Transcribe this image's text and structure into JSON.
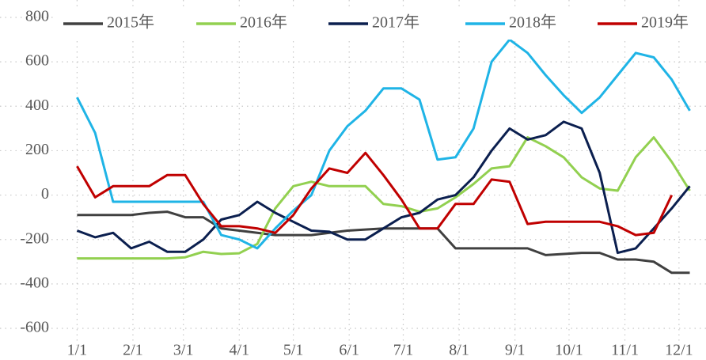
{
  "chart_data": {
    "type": "line",
    "x": [
      0,
      10,
      20,
      30,
      40,
      50,
      60,
      70,
      80,
      90,
      100,
      110,
      120,
      130,
      140,
      150,
      160,
      170,
      180,
      190,
      200,
      210,
      220,
      230,
      240,
      250,
      260,
      270,
      280,
      290,
      300,
      310,
      320,
      330,
      340
    ],
    "xlim": [
      -5,
      349
    ],
    "xticks": [
      {
        "value": 0,
        "label": "1/1"
      },
      {
        "value": 31,
        "label": "2/1"
      },
      {
        "value": 59,
        "label": "3/1"
      },
      {
        "value": 90,
        "label": "4/1"
      },
      {
        "value": 120,
        "label": "5/1"
      },
      {
        "value": 151,
        "label": "6/1"
      },
      {
        "value": 181,
        "label": "7/1"
      },
      {
        "value": 212,
        "label": "8/1"
      },
      {
        "value": 243,
        "label": "9/1"
      },
      {
        "value": 273,
        "label": "10/1"
      },
      {
        "value": 304,
        "label": "11/1"
      },
      {
        "value": 334,
        "label": "12/1"
      }
    ],
    "ylim": [
      -600,
      800
    ],
    "yticks": [
      {
        "value": -600,
        "label": "-600"
      },
      {
        "value": -400,
        "label": "-400"
      },
      {
        "value": -200,
        "label": "-200"
      },
      0,
      200,
      400,
      600,
      800
    ],
    "grid": true,
    "legend": "top",
    "series": [
      {
        "name": "2015年",
        "color": "#404040",
        "values": [
          -90,
          -90,
          -90,
          -90,
          -80,
          -75,
          -100,
          -100,
          -150,
          -160,
          -170,
          -180,
          -180,
          -180,
          -170,
          -160,
          -155,
          -150,
          -150,
          -150,
          -150,
          -240,
          -240,
          -240,
          -240,
          -240,
          -270,
          -265,
          -260,
          -260,
          -290,
          -290,
          -300,
          -350,
          -350
        ]
      },
      {
        "name": "2016年",
        "color": "#92d050",
        "values": [
          -285,
          -285,
          -285,
          -285,
          -285,
          -285,
          -280,
          -255,
          -265,
          -262,
          -220,
          -60,
          40,
          60,
          40,
          40,
          40,
          -40,
          -50,
          -75,
          -60,
          -10,
          50,
          120,
          130,
          260,
          220,
          170,
          80,
          30,
          20,
          170,
          260,
          150,
          20
        ]
      },
      {
        "name": "2017年",
        "color": "#0b1f4f",
        "values": [
          -160,
          -190,
          -170,
          -240,
          -210,
          -255,
          -255,
          -200,
          -110,
          -90,
          -30,
          -80,
          -120,
          -160,
          -165,
          -200,
          -200,
          -150,
          -100,
          -80,
          -20,
          0,
          80,
          200,
          300,
          250,
          270,
          330,
          300,
          100,
          -260,
          -240,
          -150,
          -60,
          40
        ]
      },
      {
        "name": "2018年",
        "color": "#1fb4e6",
        "values": [
          440,
          280,
          -30,
          -30,
          -30,
          -30,
          -30,
          -30,
          -180,
          -200,
          -240,
          -150,
          -70,
          0,
          200,
          310,
          380,
          480,
          480,
          430,
          160,
          170,
          300,
          600,
          700,
          640,
          540,
          450,
          370,
          440,
          540,
          640,
          620,
          520,
          380
        ]
      },
      {
        "name": "2019年",
        "color": "#c00000",
        "values": [
          130,
          -10,
          40,
          40,
          40,
          90,
          90,
          -40,
          -140,
          -140,
          -150,
          -170,
          -90,
          30,
          120,
          100,
          190,
          90,
          -20,
          -150,
          -150,
          -40,
          -40,
          70,
          60,
          -130,
          -120,
          -120,
          -120,
          -120,
          -140,
          -180,
          -170,
          0,
          null
        ]
      }
    ]
  }
}
